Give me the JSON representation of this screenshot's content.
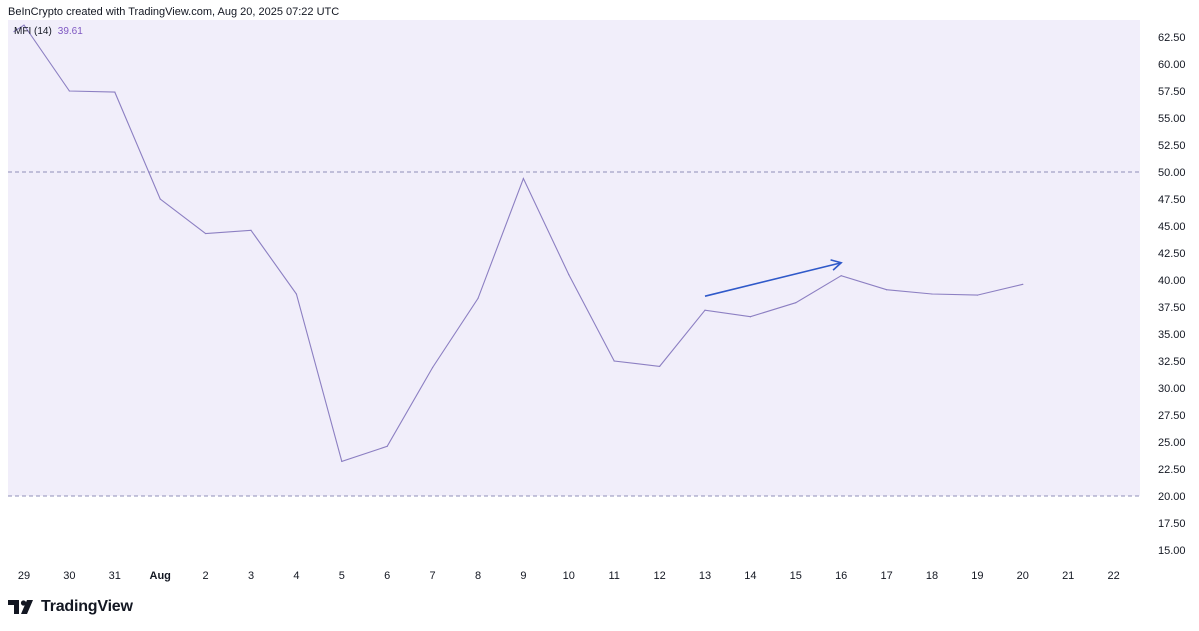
{
  "header": {
    "attribution": "BeInCrypto created with TradingView.com, Aug 20, 2025 07:22 UTC"
  },
  "legend": {
    "name": "MFI (14)",
    "value": "39.61"
  },
  "footer": {
    "brand": "TradingView"
  },
  "colors": {
    "line": "#8c7fc2",
    "band": "#f1eefa",
    "bandLine": "#8f8fb8",
    "arrow": "#2f59c9"
  },
  "chart_data": {
    "type": "line",
    "title": "",
    "xlabel": "",
    "ylabel": "",
    "x_ticks": [
      "29",
      "30",
      "31",
      "Aug",
      "2",
      "3",
      "4",
      "5",
      "6",
      "7",
      "8",
      "9",
      "10",
      "11",
      "12",
      "13",
      "14",
      "15",
      "16",
      "17",
      "18",
      "19",
      "20",
      "21",
      "22"
    ],
    "y_ticks": [
      "62.50",
      "60.00",
      "57.50",
      "55.00",
      "52.50",
      "50.00",
      "47.50",
      "45.00",
      "42.50",
      "40.00",
      "37.50",
      "35.00",
      "32.50",
      "30.00",
      "27.50",
      "25.00",
      "22.50",
      "20.00",
      "17.50",
      "15.00"
    ],
    "ylim": [
      15,
      62.5
    ],
    "band": {
      "upper": 50,
      "lower": 20
    },
    "series": [
      {
        "name": "MFI (14)",
        "x": [
          "28",
          "29",
          "30",
          "31",
          "Aug",
          "2",
          "3",
          "4",
          "5",
          "6",
          "7",
          "8",
          "9",
          "10",
          "11",
          "12",
          "13",
          "14",
          "15",
          "16",
          "17",
          "18",
          "19",
          "20"
        ],
        "values": [
          63.0,
          63.6,
          57.5,
          57.4,
          47.5,
          44.3,
          44.6,
          38.7,
          23.2,
          24.6,
          31.9,
          38.3,
          49.4,
          40.5,
          32.5,
          32.0,
          37.2,
          36.6,
          37.9,
          40.4,
          39.1,
          38.7,
          38.6,
          39.6
        ]
      }
    ],
    "annotations": [
      {
        "type": "arrow",
        "from": {
          "x": "13",
          "y": 38.5
        },
        "to": {
          "x": "16",
          "y": 41.6
        }
      }
    ]
  }
}
